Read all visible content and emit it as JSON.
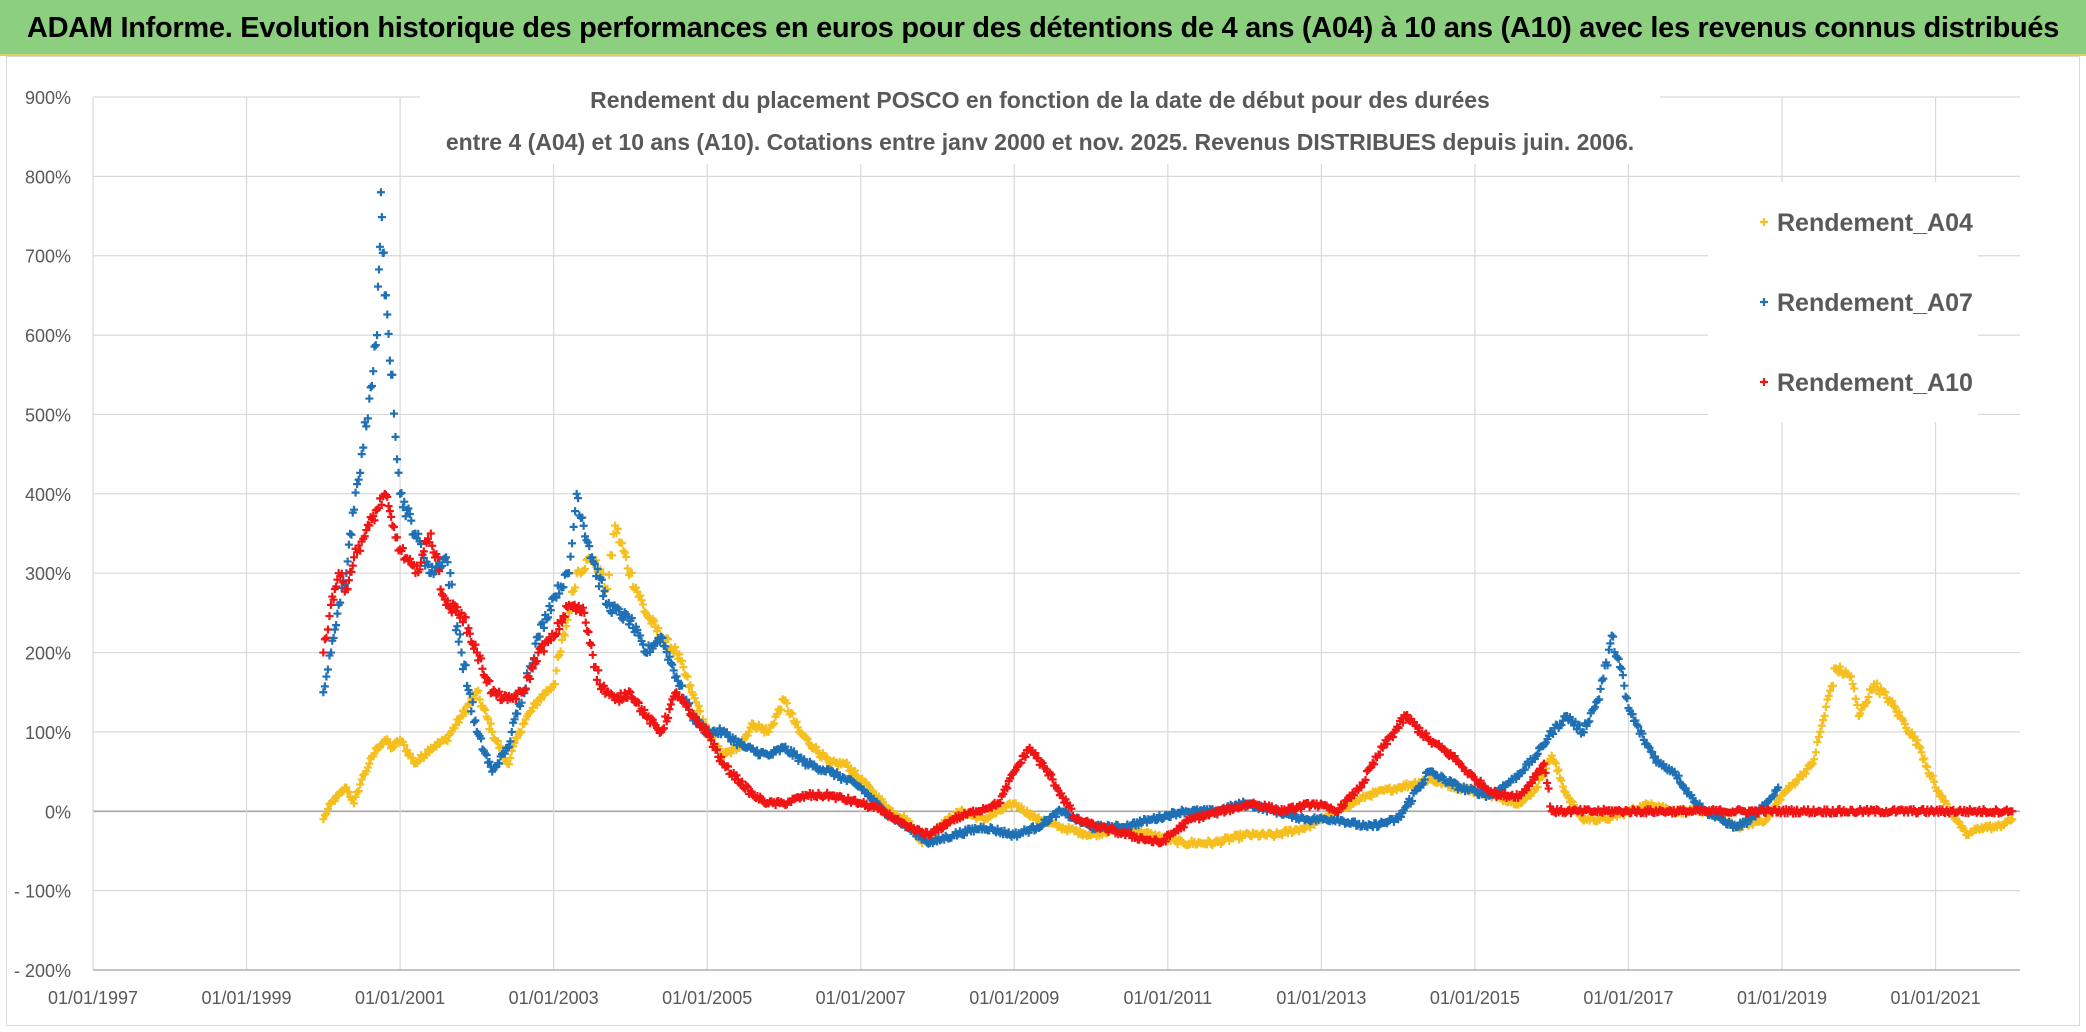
{
  "banner": {
    "title": "ADAM Informe. Evolution historique des performances en euros pour des détentions de 4 ans (A04) à 10 ans (A10) avec les revenus connus distribués"
  },
  "colors": {
    "banner_bg": "#8ccf7e",
    "A04": "#f5bf1f",
    "A07": "#1f70b5",
    "A10": "#f01414",
    "grid": "#d9d9d9",
    "zero_axis": "#a6a6a6",
    "text": "#595959"
  },
  "chart_data": {
    "type": "scatter",
    "marker": "+",
    "title_lines": [
      "Rendement du placement POSCO en fonction de la date de début pour des durées",
      "entre 4 (A04) et 10 ans (A10). Cotations entre janv 2000 et nov. 2025. Revenus DISTRIBUES depuis juin. 2006."
    ],
    "xlabel": "",
    "ylabel": "",
    "x_range_years": [
      1997.0,
      2022.1
    ],
    "x_ticks": [
      {
        "label": "01/01/1997",
        "year": 1997
      },
      {
        "label": "01/01/1999",
        "year": 1999
      },
      {
        "label": "01/01/2001",
        "year": 2001
      },
      {
        "label": "01/01/2003",
        "year": 2003
      },
      {
        "label": "01/01/2005",
        "year": 2005
      },
      {
        "label": "01/01/2007",
        "year": 2007
      },
      {
        "label": "01/01/2009",
        "year": 2009
      },
      {
        "label": "01/01/2011",
        "year": 2011
      },
      {
        "label": "01/01/2013",
        "year": 2013
      },
      {
        "label": "01/01/2015",
        "year": 2015
      },
      {
        "label": "01/01/2017",
        "year": 2017
      },
      {
        "label": "01/01/2019",
        "year": 2019
      },
      {
        "label": "01/01/2021",
        "year": 2021
      }
    ],
    "ylim": [
      -200,
      900
    ],
    "y_ticks": [
      {
        "label": "- 200%",
        "value": -200
      },
      {
        "label": "- 100%",
        "value": -100
      },
      {
        "label": "0%",
        "value": 0
      },
      {
        "label": "100%",
        "value": 100
      },
      {
        "label": "200%",
        "value": 200
      },
      {
        "label": "300%",
        "value": 300
      },
      {
        "label": "400%",
        "value": 400
      },
      {
        "label": "500%",
        "value": 500
      },
      {
        "label": "600%",
        "value": 600
      },
      {
        "label": "700%",
        "value": 700
      },
      {
        "label": "800%",
        "value": 800
      },
      {
        "label": "900%",
        "value": 900
      }
    ],
    "grid": true,
    "legend_position": "top-right",
    "series": [
      {
        "name": "Rendement_A04",
        "color_key": "A04",
        "x": [
          2000.0,
          2000.1,
          2000.2,
          2000.3,
          2000.4,
          2000.5,
          2000.6,
          2000.7,
          2000.8,
          2000.9,
          2001.0,
          2001.2,
          2001.4,
          2001.6,
          2001.8,
          2002.0,
          2002.2,
          2002.4,
          2002.6,
          2002.8,
          2003.0,
          2003.2,
          2003.3,
          2003.5,
          2003.7,
          2003.8,
          2004.0,
          2004.2,
          2004.4,
          2004.6,
          2004.8,
          2005.0,
          2005.2,
          2005.4,
          2005.6,
          2005.8,
          2006.0,
          2006.2,
          2006.4,
          2006.6,
          2006.8,
          2007.0,
          2007.2,
          2007.4,
          2007.6,
          2007.8,
          2008.0,
          2008.3,
          2008.6,
          2009.0,
          2009.3,
          2009.6,
          2010.0,
          2010.4,
          2010.8,
          2011.2,
          2011.6,
          2012.0,
          2012.4,
          2012.8,
          2013.2,
          2013.6,
          2014.0,
          2014.4,
          2014.8,
          2015.2,
          2015.6,
          2015.8,
          2016.0,
          2016.2,
          2016.4,
          2016.7,
          2017.0,
          2017.3,
          2017.6,
          2018.0,
          2018.4,
          2018.8,
          2019.0,
          2019.2,
          2019.4,
          2019.5,
          2019.7,
          2019.9,
          2020.0,
          2020.2,
          2020.4,
          2020.6,
          2020.8,
          2021.0,
          2021.2,
          2021.4,
          2021.6,
          2021.8,
          2022.0
        ],
        "y": [
          -10,
          10,
          20,
          30,
          10,
          40,
          60,
          80,
          90,
          80,
          90,
          60,
          80,
          90,
          120,
          150,
          100,
          60,
          110,
          140,
          160,
          250,
          300,
          320,
          280,
          360,
          300,
          250,
          220,
          200,
          150,
          100,
          70,
          80,
          110,
          100,
          140,
          100,
          80,
          60,
          60,
          40,
          20,
          0,
          -10,
          -40,
          -20,
          0,
          -10,
          10,
          -10,
          -20,
          -30,
          -20,
          -30,
          -40,
          -40,
          -30,
          -30,
          -20,
          0,
          20,
          30,
          40,
          30,
          20,
          10,
          30,
          70,
          20,
          -10,
          -10,
          0,
          10,
          0,
          0,
          -20,
          -10,
          20,
          40,
          60,
          100,
          180,
          170,
          120,
          160,
          140,
          110,
          80,
          30,
          0,
          -30,
          -20,
          -20,
          -10
        ]
      },
      {
        "name": "Rendement_A07",
        "color_key": "A07",
        "x": [
          2000.0,
          2000.1,
          2000.2,
          2000.3,
          2000.4,
          2000.5,
          2000.6,
          2000.7,
          2000.75,
          2000.8,
          2000.9,
          2001.0,
          2001.2,
          2001.4,
          2001.6,
          2001.8,
          2002.0,
          2002.2,
          2002.4,
          2002.6,
          2002.8,
          2003.0,
          2003.2,
          2003.3,
          2003.5,
          2003.7,
          2004.0,
          2004.2,
          2004.4,
          2004.6,
          2004.8,
          2005.0,
          2005.2,
          2005.5,
          2005.8,
          2006.0,
          2006.3,
          2006.6,
          2007.0,
          2007.3,
          2007.6,
          2007.9,
          2008.2,
          2008.6,
          2009.0,
          2009.3,
          2009.6,
          2010.0,
          2010.4,
          2010.8,
          2011.2,
          2011.6,
          2012.0,
          2012.4,
          2012.8,
          2013.2,
          2013.6,
          2014.0,
          2014.4,
          2014.8,
          2015.2,
          2015.5,
          2015.8,
          2016.0,
          2016.2,
          2016.4,
          2016.6,
          2016.8,
          2017.0,
          2017.2,
          2017.4,
          2017.6,
          2017.8,
          2018.0,
          2018.2,
          2018.4,
          2018.6,
          2018.8,
          2018.95
        ],
        "y": [
          150,
          200,
          260,
          300,
          380,
          450,
          520,
          600,
          780,
          650,
          550,
          400,
          350,
          300,
          320,
          200,
          100,
          50,
          80,
          150,
          220,
          270,
          300,
          400,
          320,
          260,
          240,
          200,
          220,
          170,
          120,
          100,
          100,
          80,
          70,
          80,
          60,
          50,
          30,
          0,
          -20,
          -40,
          -30,
          -20,
          -30,
          -20,
          0,
          -20,
          -20,
          -10,
          0,
          0,
          10,
          0,
          -10,
          -10,
          -20,
          -10,
          50,
          30,
          20,
          40,
          70,
          100,
          120,
          100,
          140,
          220,
          130,
          90,
          60,
          50,
          20,
          0,
          -10,
          -20,
          -10,
          10,
          30
        ]
      },
      {
        "name": "Rendement_A10",
        "color_key": "A10",
        "x": [
          2000.0,
          2000.1,
          2000.2,
          2000.3,
          2000.4,
          2000.5,
          2000.6,
          2000.7,
          2000.8,
          2000.9,
          2001.0,
          2001.2,
          2001.4,
          2001.6,
          2001.8,
          2002.0,
          2002.2,
          2002.4,
          2002.6,
          2002.8,
          2003.0,
          2003.2,
          2003.4,
          2003.6,
          2003.8,
          2004.0,
          2004.2,
          2004.4,
          2004.6,
          2004.8,
          2005.0,
          2005.2,
          2005.4,
          2005.6,
          2005.8,
          2006.0,
          2006.3,
          2006.6,
          2007.0,
          2007.3,
          2007.6,
          2007.9,
          2008.2,
          2008.5,
          2008.8,
          2009.0,
          2009.2,
          2009.5,
          2009.8,
          2010.1,
          2010.5,
          2010.9,
          2011.3,
          2011.7,
          2012.1,
          2012.5,
          2012.9,
          2013.2,
          2013.5,
          2013.8,
          2014.1,
          2014.4,
          2014.7,
          2015.0,
          2015.3,
          2015.6,
          2015.9,
          2016.0,
          2016.5,
          2017.0,
          2017.5,
          2018.0,
          2018.5,
          2019.0,
          2019.5,
          2020.0,
          2020.5,
          2021.0,
          2021.5,
          2022.0
        ],
        "y": [
          200,
          260,
          300,
          280,
          320,
          340,
          360,
          380,
          400,
          360,
          330,
          300,
          350,
          260,
          250,
          200,
          150,
          140,
          150,
          200,
          220,
          260,
          250,
          160,
          140,
          150,
          120,
          100,
          150,
          120,
          100,
          60,
          40,
          20,
          10,
          10,
          20,
          20,
          10,
          0,
          -20,
          -30,
          -10,
          0,
          10,
          50,
          80,
          40,
          -10,
          -20,
          -30,
          -40,
          -10,
          0,
          10,
          0,
          10,
          0,
          30,
          80,
          120,
          90,
          70,
          40,
          20,
          20,
          60,
          0,
          0,
          0,
          0,
          0,
          0,
          0,
          0,
          0,
          0,
          0,
          0,
          0
        ]
      }
    ]
  }
}
